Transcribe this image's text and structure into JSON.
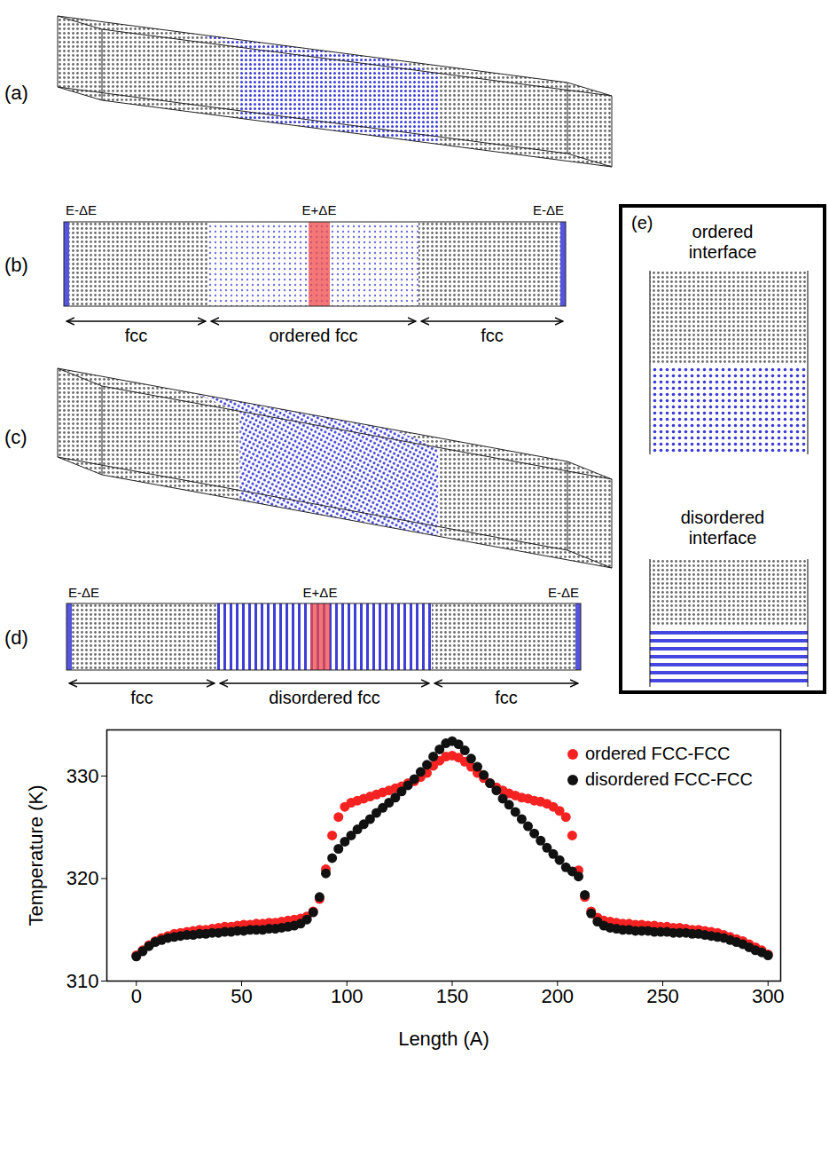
{
  "panels": [
    {
      "label": "(a)"
    },
    {
      "label": "(b)",
      "annotations": [
        "E-ΔE",
        "E+ΔE",
        "E-ΔE"
      ],
      "regions": [
        "fcc",
        "ordered fcc",
        "fcc"
      ]
    },
    {
      "label": "(c)"
    },
    {
      "label": "(d)",
      "annotations": [
        "E-ΔE",
        "E+ΔE",
        "E-ΔE"
      ],
      "regions": [
        "fcc",
        "disordered fcc",
        "fcc"
      ]
    },
    {
      "label": "(e)",
      "interfaces": [
        "ordered interface",
        "disordered interface"
      ]
    }
  ],
  "chart_data": {
    "type": "scatter",
    "x_label": "Length (A)",
    "y_label": "Temperature (K)",
    "marker": "circle",
    "legend": "top-right",
    "grid": false,
    "xlim": [
      -14,
      306
    ],
    "ylim": [
      310,
      334.5
    ],
    "xticks": [
      0,
      50,
      100,
      150,
      200,
      250,
      300
    ],
    "yticks": [
      310,
      320,
      330
    ],
    "x": [
      0,
      3,
      6,
      9,
      12,
      15,
      18,
      21,
      24,
      27,
      30,
      33,
      36,
      39,
      42,
      45,
      48,
      51,
      54,
      57,
      60,
      63,
      66,
      69,
      72,
      75,
      78,
      81,
      84,
      87,
      90,
      93,
      96,
      99,
      102,
      105,
      108,
      111,
      114,
      117,
      120,
      123,
      126,
      129,
      132,
      135,
      138,
      141,
      144,
      147,
      150,
      153,
      156,
      159,
      162,
      165,
      168,
      171,
      174,
      177,
      180,
      183,
      186,
      189,
      192,
      195,
      198,
      201,
      204,
      207,
      210,
      213,
      216,
      219,
      222,
      225,
      228,
      231,
      234,
      237,
      240,
      243,
      246,
      249,
      252,
      255,
      258,
      261,
      264,
      267,
      270,
      273,
      276,
      279,
      282,
      285,
      288,
      291,
      294,
      297,
      300
    ],
    "series": [
      {
        "name": "ordered FCC-FCC",
        "color": "#f52222",
        "values": [
          312.5,
          313.0,
          313.5,
          313.9,
          314.2,
          314.4,
          314.6,
          314.7,
          314.8,
          314.9,
          315.0,
          315.0,
          315.1,
          315.2,
          315.3,
          315.3,
          315.4,
          315.5,
          315.5,
          315.6,
          315.6,
          315.7,
          315.7,
          315.8,
          315.9,
          316.0,
          316.1,
          316.3,
          316.8,
          318.0,
          320.9,
          324.2,
          326.0,
          327.0,
          327.4,
          327.6,
          327.8,
          328.0,
          328.2,
          328.4,
          328.6,
          328.8,
          329.0,
          329.3,
          329.5,
          329.9,
          330.3,
          331.0,
          331.5,
          331.9,
          332.0,
          331.8,
          331.4,
          330.9,
          330.3,
          329.8,
          329.3,
          328.9,
          328.6,
          328.3,
          328.1,
          327.9,
          327.8,
          327.6,
          327.5,
          327.3,
          327.0,
          326.6,
          326.0,
          324.2,
          320.8,
          318.2,
          316.8,
          316.2,
          315.9,
          315.8,
          315.7,
          315.6,
          315.6,
          315.5,
          315.5,
          315.4,
          315.4,
          315.3,
          315.3,
          315.2,
          315.2,
          315.1,
          315.0,
          315.0,
          314.9,
          314.8,
          314.7,
          314.5,
          314.3,
          314.1,
          313.9,
          313.6,
          313.3,
          313.0,
          312.6
        ]
      },
      {
        "name": "disordered FCC-FCC",
        "color": "#111111",
        "values": [
          312.4,
          312.9,
          313.4,
          313.8,
          314.0,
          314.2,
          314.3,
          314.4,
          314.5,
          314.5,
          314.6,
          314.6,
          314.7,
          314.7,
          314.8,
          314.8,
          314.9,
          314.9,
          315.0,
          315.0,
          315.0,
          315.1,
          315.1,
          315.2,
          315.3,
          315.4,
          315.6,
          316.0,
          316.7,
          318.2,
          320.5,
          322.0,
          322.9,
          323.6,
          324.2,
          324.8,
          325.3,
          325.8,
          326.4,
          326.9,
          327.4,
          327.9,
          328.5,
          329.1,
          329.7,
          330.4,
          331.1,
          331.9,
          332.6,
          333.2,
          333.4,
          333.1,
          332.5,
          331.7,
          330.9,
          330.1,
          329.3,
          328.6,
          327.8,
          327.2,
          326.5,
          325.8,
          325.1,
          324.4,
          323.7,
          323.0,
          322.4,
          321.8,
          321.1,
          320.7,
          320.2,
          318.4,
          316.6,
          315.8,
          315.4,
          315.2,
          315.1,
          315.0,
          315.0,
          314.9,
          314.9,
          314.9,
          314.8,
          314.8,
          314.8,
          314.7,
          314.7,
          314.7,
          314.6,
          314.6,
          314.5,
          314.4,
          314.3,
          314.2,
          314.0,
          313.8,
          313.6,
          313.3,
          313.0,
          312.8,
          312.5
        ]
      }
    ]
  }
}
